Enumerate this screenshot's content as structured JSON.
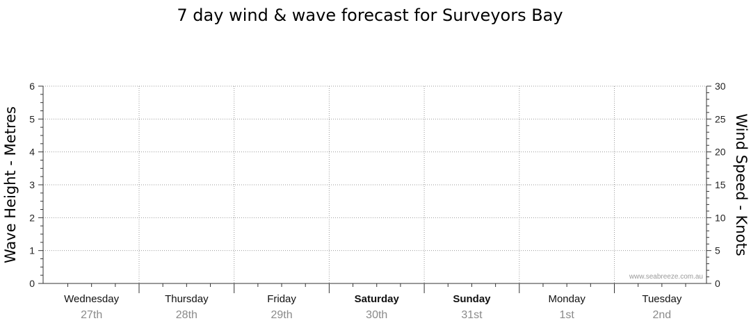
{
  "chart_data": {
    "type": "line",
    "title": "7 day wind & wave forecast for Surveyors Bay",
    "ylabel_left": "Wave Height - Metres",
    "ylabel_right": "Wind Speed - Knots",
    "y_left_range": [
      0,
      6
    ],
    "y_left_ticks": [
      "0",
      "1",
      "2",
      "3",
      "4",
      "5",
      "6"
    ],
    "y_right_range": [
      0,
      30
    ],
    "y_right_ticks": [
      "0",
      "5",
      "10",
      "15",
      "20",
      "25",
      "30"
    ],
    "grid": true,
    "days": [
      {
        "day": "Wednesday",
        "date": "27th",
        "weekend": false
      },
      {
        "day": "Thursday",
        "date": "28th",
        "weekend": false
      },
      {
        "day": "Friday",
        "date": "29th",
        "weekend": false
      },
      {
        "day": "Saturday",
        "date": "30th",
        "weekend": true
      },
      {
        "day": "Sunday",
        "date": "31st",
        "weekend": true
      },
      {
        "day": "Monday",
        "date": "1st",
        "weekend": false
      },
      {
        "day": "Tuesday",
        "date": "2nd",
        "weekend": false
      }
    ],
    "series": []
  },
  "watermark": "www.seabreeze.com.au"
}
